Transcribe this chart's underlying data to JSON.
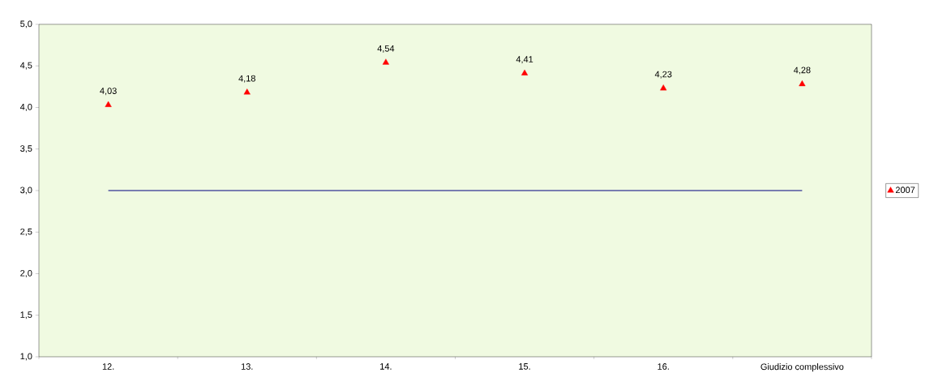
{
  "chart_data": {
    "type": "scatter",
    "categories": [
      "12.",
      "13.",
      "14.",
      "15.",
      "16.",
      "Giudizio complessivo"
    ],
    "series": [
      {
        "name": "2007",
        "color": "#ff0000",
        "values": [
          4.03,
          4.18,
          4.54,
          4.41,
          4.23,
          4.28
        ],
        "value_labels": [
          "4,03",
          "4,18",
          "4,54",
          "4,41",
          "4,23",
          "4,28"
        ]
      }
    ],
    "ylim": [
      1.0,
      5.0
    ],
    "yticks": [
      {
        "value": 1.0,
        "label": "1,0"
      },
      {
        "value": 1.5,
        "label": "1,5"
      },
      {
        "value": 2.0,
        "label": "2,0"
      },
      {
        "value": 2.5,
        "label": "2,5"
      },
      {
        "value": 3.0,
        "label": "3,0"
      },
      {
        "value": 3.5,
        "label": "3,5"
      },
      {
        "value": 4.0,
        "label": "4,0"
      },
      {
        "value": 4.5,
        "label": "4,5"
      },
      {
        "value": 5.0,
        "label": "5,0"
      }
    ],
    "ref_lines": [
      {
        "axis": "y",
        "value": 3.0,
        "color": "#000080"
      }
    ],
    "marker": "triangle",
    "legend": "right",
    "grid": false
  }
}
